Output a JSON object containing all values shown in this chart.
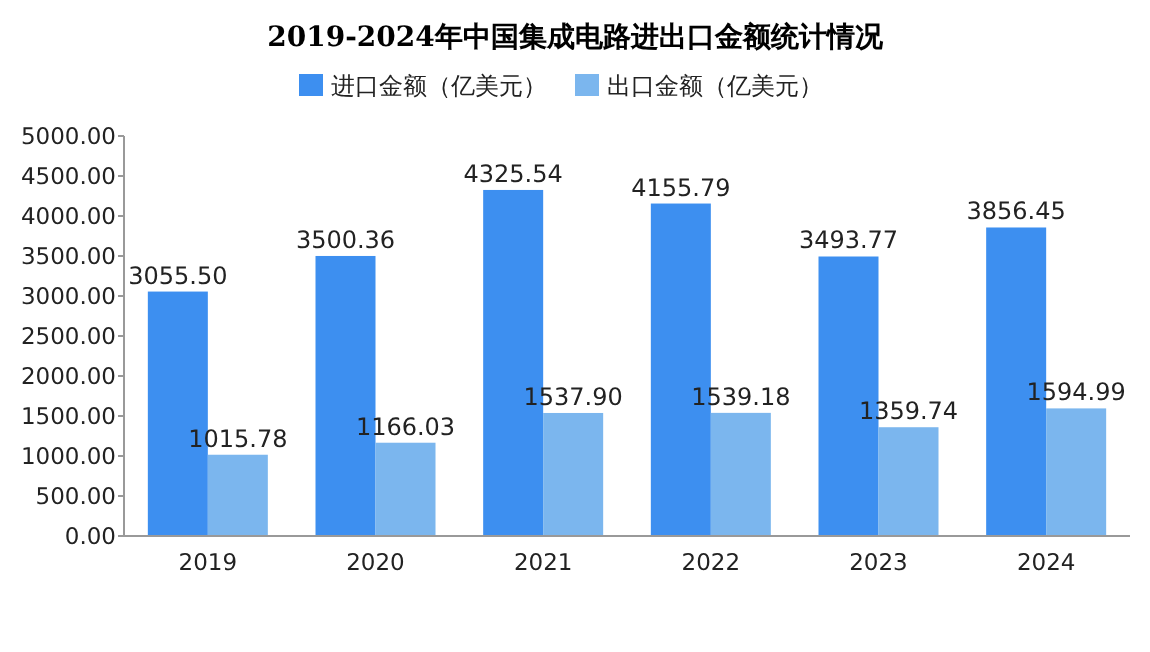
{
  "chart_data": {
    "type": "bar",
    "title": "2019-2024年中国集成电路进出口金额统计情况",
    "categories": [
      "2019",
      "2020",
      "2021",
      "2022",
      "2023",
      "2024"
    ],
    "series": [
      {
        "name": "进口金额（亿美元）",
        "color": "#3d8ff0",
        "values": [
          3055.5,
          3500.36,
          4325.54,
          4155.79,
          3493.77,
          3856.45
        ],
        "value_labels": [
          "3055.50",
          "3500.36",
          "4325.54",
          "4155.79",
          "3493.77",
          "3856.45"
        ]
      },
      {
        "name": "出口金额（亿美元）",
        "color": "#7bb6ee",
        "values": [
          1015.78,
          1166.03,
          1537.9,
          1539.18,
          1359.74,
          1594.99
        ],
        "value_labels": [
          "1015.78",
          "1166.03",
          "1537.90",
          "1539.18",
          "1359.74",
          "1594.99"
        ]
      }
    ],
    "ylim": [
      0,
      5000
    ],
    "yticks": [
      {
        "value": 0,
        "label": "0.00"
      },
      {
        "value": 500,
        "label": "500.00"
      },
      {
        "value": 1000,
        "label": "1000.00"
      },
      {
        "value": 1500,
        "label": "1500.00"
      },
      {
        "value": 2000,
        "label": "2000.00"
      },
      {
        "value": 2500,
        "label": "2500.00"
      },
      {
        "value": 3000,
        "label": "3000.00"
      },
      {
        "value": 3500,
        "label": "3500.00"
      },
      {
        "value": 4000,
        "label": "4000.00"
      },
      {
        "value": 4500,
        "label": "4500.00"
      },
      {
        "value": 5000,
        "label": "5000.00"
      }
    ],
    "legend": "top"
  }
}
